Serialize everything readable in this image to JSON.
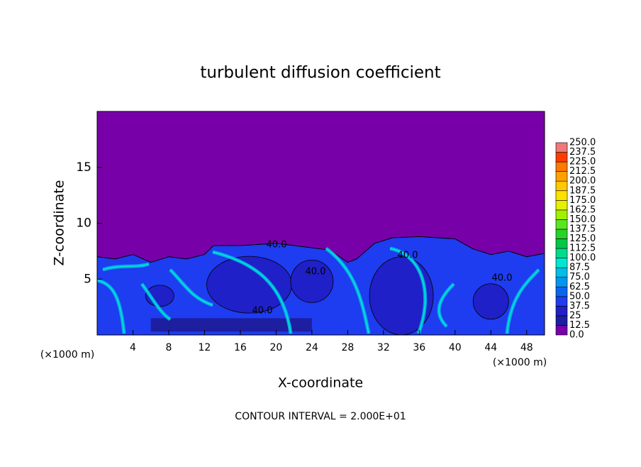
{
  "chart_data": {
    "type": "contour",
    "title": "turbulent diffusion coefficient",
    "x_label": "X-coordinate",
    "y_label": "Z-coordinate",
    "x_unit_label": "(×1000 m)",
    "footer": "CONTOUR INTERVAL = 2.000E+01",
    "xlim": [
      0,
      50
    ],
    "xticks": [
      4,
      8,
      12,
      16,
      20,
      24,
      28,
      32,
      36,
      40,
      44,
      48
    ],
    "ylim": [
      0,
      20
    ],
    "yticks": [
      5,
      10,
      15
    ],
    "contour_labels": [
      {
        "value": 40,
        "label": "40.0"
      },
      {
        "value": 40,
        "label": "40.0"
      },
      {
        "value": 40,
        "label": "40.0"
      },
      {
        "value": 40,
        "label": "40.0"
      },
      {
        "value": 40,
        "label": "40.0"
      }
    ],
    "colorbar_levels": [
      {
        "value": 0,
        "label": "0.0"
      },
      {
        "value": 12.5,
        "label": "12.5"
      },
      25,
      {
        "value": 37.5,
        "label": "37.5"
      },
      {
        "value": 50,
        "label": "50.0"
      },
      {
        "value": 62.5,
        "label": "62.5"
      },
      {
        "value": 75,
        "label": "75.0"
      },
      {
        "value": 87.5,
        "label": "87.5"
      },
      {
        "value": 100,
        "label": "100.0"
      },
      {
        "value": 112.5,
        "label": "112.5"
      },
      {
        "value": 125,
        "label": "125.0"
      },
      {
        "value": 137.5,
        "label": "137.5"
      },
      {
        "value": 150,
        "label": "150.0"
      },
      {
        "value": 162.5,
        "label": "162.5"
      },
      {
        "value": 175,
        "label": "175.0"
      },
      {
        "value": 187.5,
        "label": "187.5"
      },
      {
        "value": 200,
        "label": "200.0"
      },
      {
        "value": 212.5,
        "label": "212.5"
      },
      {
        "value": 225,
        "label": "225.0"
      },
      {
        "value": 237.5,
        "label": "237.5"
      },
      {
        "value": 250,
        "label": "250.0"
      }
    ],
    "colorbar_colors": [
      "#7800a8",
      "#1e1ea0",
      "#2020c8",
      "#1e3cf0",
      "#0a64f0",
      "#0096f0",
      "#00bee6",
      "#00e6d2",
      "#00dc8c",
      "#00c846",
      "#28d228",
      "#5ae61e",
      "#a0f000",
      "#e6f000",
      "#ffe100",
      "#ffc800",
      "#ffa000",
      "#ff7800",
      "#ff3c00",
      "#f07878"
    ]
  }
}
